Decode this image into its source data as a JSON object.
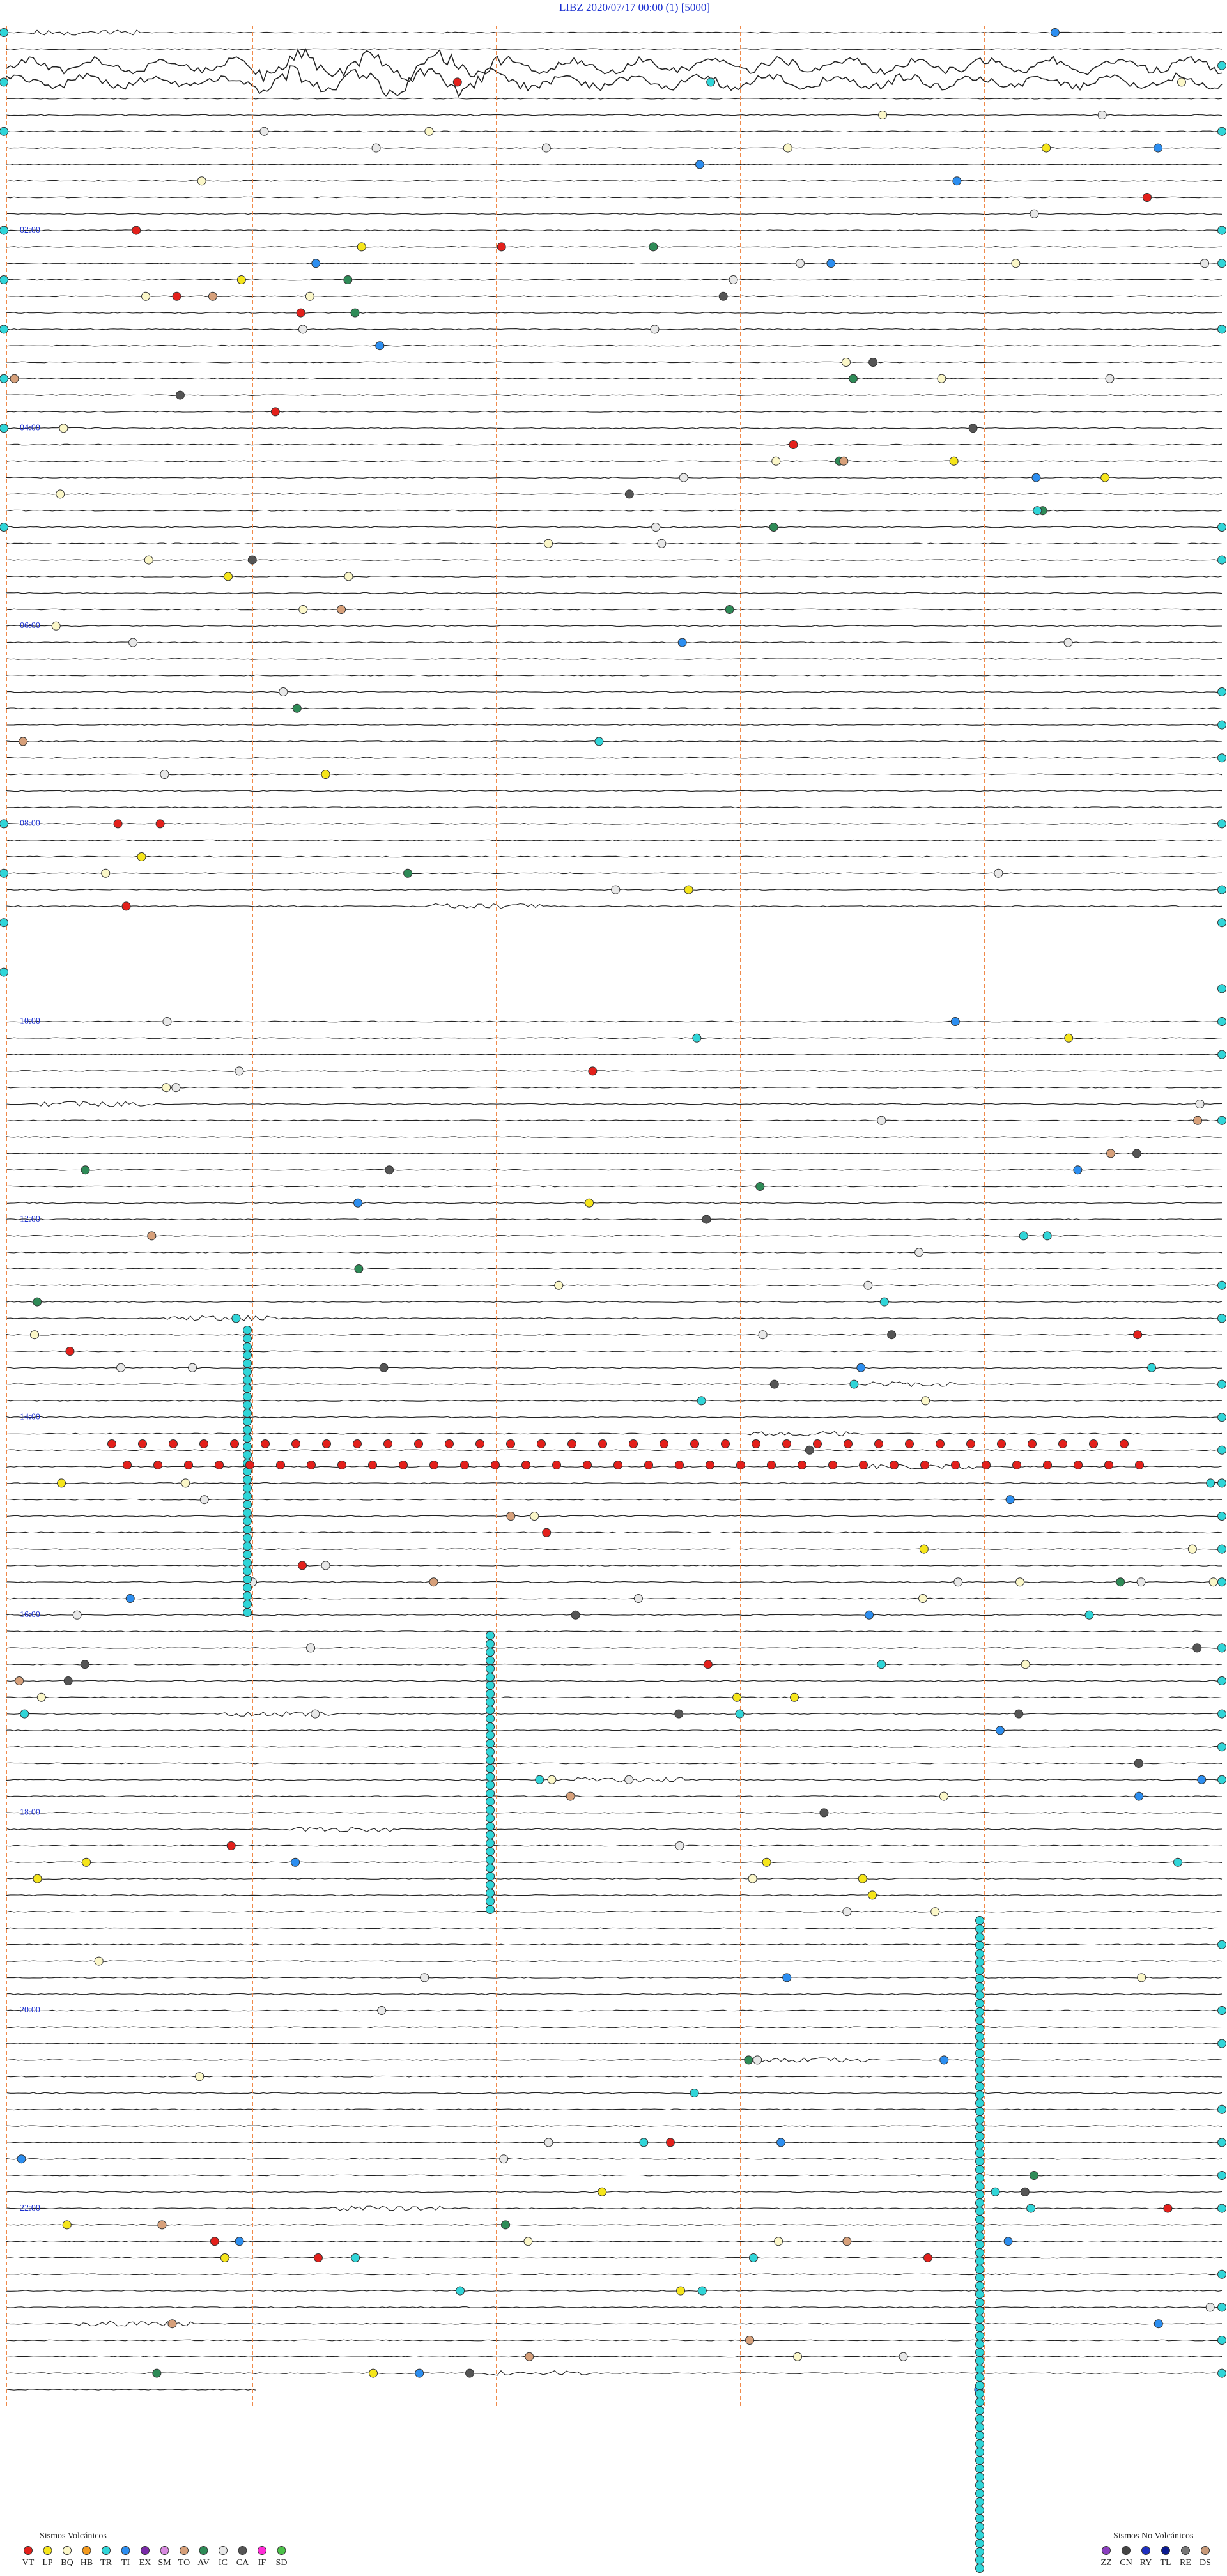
{
  "header": {
    "title": "LIBZ    2020/07/17 00:00    (1)    [5000]"
  },
  "hour_labels": [
    "02:00",
    "04:00",
    "06:00",
    "08:00",
    "10:00",
    "12:00",
    "14:00",
    "16:00",
    "18:00",
    "20:00",
    "22:00"
  ],
  "legend_volcanic": {
    "title": "Sismos Volcánicos",
    "items": [
      {
        "code": "VT",
        "color": "#e3201b"
      },
      {
        "code": "LP",
        "color": "#f5e51b"
      },
      {
        "code": "BQ",
        "color": "#fbf7c8"
      },
      {
        "code": "HB",
        "color": "#f39a1e"
      },
      {
        "code": "TR",
        "color": "#30d5d8"
      },
      {
        "code": "TI",
        "color": "#2c8ef0"
      },
      {
        "code": "EX",
        "color": "#7a2aa8"
      },
      {
        "code": "SM",
        "color": "#d88ae0"
      },
      {
        "code": "TO",
        "color": "#d7a07a"
      },
      {
        "code": "AV",
        "color": "#2e8b57"
      },
      {
        "code": "IC",
        "color": "#e8e8e8"
      },
      {
        "code": "CA",
        "color": "#555555"
      },
      {
        "code": "IF",
        "color": "#ff2bd6"
      },
      {
        "code": "SD",
        "color": "#4cc24a"
      }
    ]
  },
  "legend_non_volcanic": {
    "title": "Sismos No Volcánicos",
    "items": [
      {
        "code": "ZZ",
        "color": "#8a3fbf"
      },
      {
        "code": "CN",
        "color": "#444444"
      },
      {
        "code": "RY",
        "color": "#1f2fbf"
      },
      {
        "code": "TL",
        "color": "#0a1a8f"
      },
      {
        "code": "RE",
        "color": "#777777"
      },
      {
        "code": "DS",
        "color": "#c89a7a"
      }
    ]
  }
}
